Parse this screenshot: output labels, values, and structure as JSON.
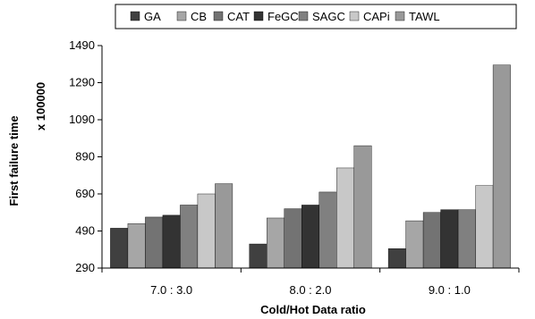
{
  "chart_data": {
    "type": "bar",
    "xlabel": "Cold/Hot Data ratio",
    "ylabel": "First failure time",
    "y_multiplier": "x 100000",
    "categories": [
      "7.0 : 3.0",
      "8.0 : 2.0",
      "9.0 : 1.0"
    ],
    "ylim": [
      290,
      1490
    ],
    "yticks": [
      "290",
      "490",
      "690",
      "890",
      "1090",
      "1290",
      "1490"
    ],
    "grid": false,
    "legend_position": "top",
    "series": [
      {
        "name": "GA",
        "color": "#404040",
        "values": [
          505,
          420,
          395
        ]
      },
      {
        "name": "CB",
        "color": "#a6a6a6",
        "values": [
          530,
          560,
          545
        ]
      },
      {
        "name": "CAT",
        "color": "#737373",
        "values": [
          565,
          610,
          590
        ]
      },
      {
        "name": "FeGC",
        "color": "#333333",
        "values": [
          575,
          630,
          605
        ]
      },
      {
        "name": "SAGC",
        "color": "#808080",
        "values": [
          630,
          700,
          605
        ]
      },
      {
        "name": "CAPi",
        "color": "#c8c8c8",
        "values": [
          690,
          830,
          735
        ]
      },
      {
        "name": "TAWL",
        "color": "#999999",
        "values": [
          745,
          950,
          1385
        ]
      }
    ]
  }
}
